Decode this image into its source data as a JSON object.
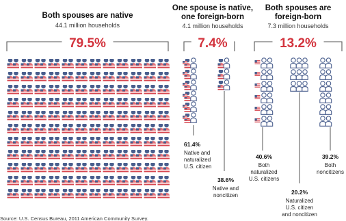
{
  "colors": {
    "red": "#d3343e",
    "blue": "#4a5f8e",
    "bracket": "#555555",
    "couple_outline": "#4a5f8e"
  },
  "icons": {
    "native_native": "flag-flag-couple-icon",
    "native_foreign": "flag-outline-couple-icon",
    "foreign_foreign": "outline-outline-couple-icon"
  },
  "chart_data": {
    "type": "pictogram",
    "panels": [
      {
        "title_lines": [
          "Both spouses are native"
        ],
        "subtitle": "44.1 million households",
        "percent_label": "79.5%",
        "percent": 79.5,
        "icon": "native_native",
        "breakdown": []
      },
      {
        "title_lines": [
          "One spouse is native,",
          "one foreign-born"
        ],
        "subtitle": "4.1 million households",
        "percent_label": "7.4%",
        "percent": 7.4,
        "breakdown": [
          {
            "percent_label": "61.4%",
            "percent": 61.4,
            "label_lines": [
              "Native and",
              "naturalized",
              "U.S. citizen"
            ],
            "icon": "flag_naturalized"
          },
          {
            "percent_label": "38.6%",
            "percent": 38.6,
            "label_lines": [
              "Native and",
              "noncitizen"
            ],
            "icon": "flag_noncitizen"
          }
        ]
      },
      {
        "title_lines": [
          "Both spouses are",
          "foreign-born"
        ],
        "subtitle": "7.3 million households",
        "percent_label": "13.2%",
        "percent": 13.2,
        "breakdown": [
          {
            "percent_label": "40.6%",
            "percent": 40.6,
            "label_lines": [
              "Both",
              "naturalized",
              "U.S. citizens"
            ],
            "icon": "flag_flag"
          },
          {
            "percent_label": "20.2%",
            "percent": 20.2,
            "label_lines": [
              "Naturalized",
              "U.S. citizen",
              "and noncitizen"
            ],
            "icon": "flag_outline"
          },
          {
            "percent_label": "39.2%",
            "percent": 39.2,
            "label_lines": [
              "Both",
              "noncitizens"
            ],
            "icon": "outline_outline"
          }
        ]
      }
    ]
  },
  "source": "Source: U.S. Census Bureau, 2011 American Community Survey."
}
